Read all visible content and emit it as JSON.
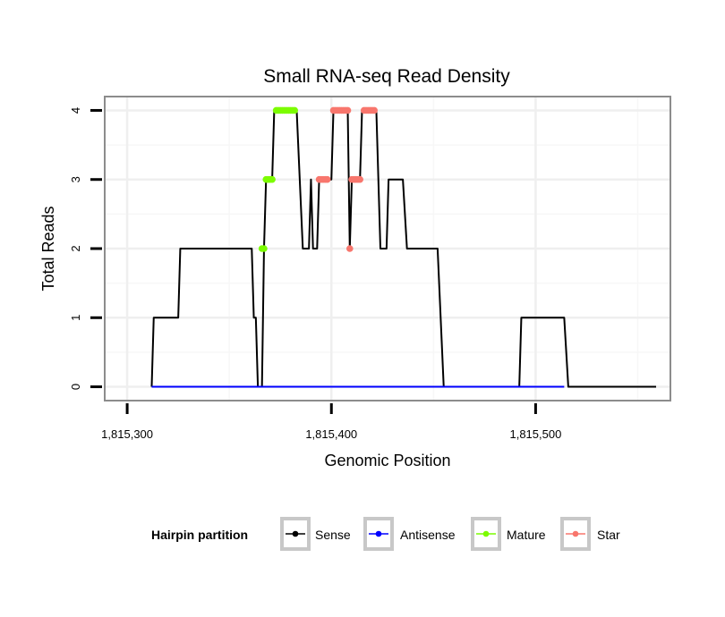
{
  "chart_data": {
    "type": "line",
    "title": "Small RNA-seq Read Density",
    "xlabel": "Genomic Position",
    "ylabel": "Total Reads",
    "xlim": [
      1815289,
      1815566
    ],
    "ylim": [
      -0.2,
      4.2
    ],
    "x_ticks": [
      1815300,
      1815400,
      1815500
    ],
    "x_tick_labels": [
      "1,815,300",
      "1,815,400",
      "1,815,500"
    ],
    "y_ticks": [
      0,
      1,
      2,
      3,
      4
    ],
    "y_tick_labels": [
      "0",
      "1",
      "2",
      "3",
      "4"
    ],
    "grid": true,
    "legend": {
      "title": "Hairpin partition",
      "placement": "bottom",
      "entries": [
        "Sense",
        "Antisense",
        "Mature",
        "Star"
      ]
    },
    "series": [
      {
        "name": "Sense",
        "color": "#000000",
        "style": "line",
        "points": [
          [
            1815312,
            0
          ],
          [
            1815313,
            1
          ],
          [
            1815325,
            1
          ],
          [
            1815326,
            2
          ],
          [
            1815361,
            2
          ],
          [
            1815362,
            1
          ],
          [
            1815363,
            1
          ],
          [
            1815364,
            0
          ],
          [
            1815366,
            0
          ],
          [
            1815367,
            2
          ],
          [
            1815368,
            3
          ],
          [
            1815371,
            3
          ],
          [
            1815372,
            4
          ],
          [
            1815383,
            4
          ],
          [
            1815386,
            2
          ],
          [
            1815389,
            2
          ],
          [
            1815390,
            3
          ],
          [
            1815391,
            2
          ],
          [
            1815393,
            2
          ],
          [
            1815394,
            3
          ],
          [
            1815400,
            3
          ],
          [
            1815401,
            4
          ],
          [
            1815408,
            4
          ],
          [
            1815409,
            2
          ],
          [
            1815410,
            3
          ],
          [
            1815414,
            3
          ],
          [
            1815415,
            4
          ],
          [
            1815422,
            4
          ],
          [
            1815424,
            2
          ],
          [
            1815427,
            2
          ],
          [
            1815428,
            3
          ],
          [
            1815435,
            3
          ],
          [
            1815437,
            2
          ],
          [
            1815452,
            2
          ],
          [
            1815455,
            0
          ],
          [
            1815492,
            0
          ],
          [
            1815493,
            1
          ],
          [
            1815514,
            1
          ],
          [
            1815516,
            0
          ],
          [
            1815559,
            0
          ]
        ]
      },
      {
        "name": "Antisense",
        "color": "#0000ff",
        "style": "line",
        "points": [
          [
            1815312,
            0
          ],
          [
            1815514,
            0
          ]
        ]
      },
      {
        "name": "Mature",
        "color": "#7cfc00",
        "style": "points",
        "points": [
          [
            1815366,
            2
          ],
          [
            1815367,
            2
          ],
          [
            1815368,
            3
          ],
          [
            1815369,
            3
          ],
          [
            1815370,
            3
          ],
          [
            1815371,
            3
          ],
          [
            1815373,
            4
          ],
          [
            1815374,
            4
          ],
          [
            1815375,
            4
          ],
          [
            1815376,
            4
          ],
          [
            1815377,
            4
          ],
          [
            1815378,
            4
          ],
          [
            1815379,
            4
          ],
          [
            1815380,
            4
          ],
          [
            1815381,
            4
          ],
          [
            1815382,
            4
          ]
        ]
      },
      {
        "name": "Star",
        "color": "#f8766d",
        "style": "points",
        "points": [
          [
            1815394,
            3
          ],
          [
            1815395,
            3
          ],
          [
            1815396,
            3
          ],
          [
            1815397,
            3
          ],
          [
            1815398,
            3
          ],
          [
            1815401,
            4
          ],
          [
            1815402,
            4
          ],
          [
            1815403,
            4
          ],
          [
            1815404,
            4
          ],
          [
            1815405,
            4
          ],
          [
            1815406,
            4
          ],
          [
            1815407,
            4
          ],
          [
            1815408,
            4
          ],
          [
            1815409,
            2
          ],
          [
            1815410,
            3
          ],
          [
            1815411,
            3
          ],
          [
            1815412,
            3
          ],
          [
            1815413,
            3
          ],
          [
            1815414,
            3
          ],
          [
            1815416,
            4
          ],
          [
            1815417,
            4
          ],
          [
            1815418,
            4
          ],
          [
            1815419,
            4
          ],
          [
            1815420,
            4
          ],
          [
            1815421,
            4
          ]
        ]
      }
    ]
  }
}
